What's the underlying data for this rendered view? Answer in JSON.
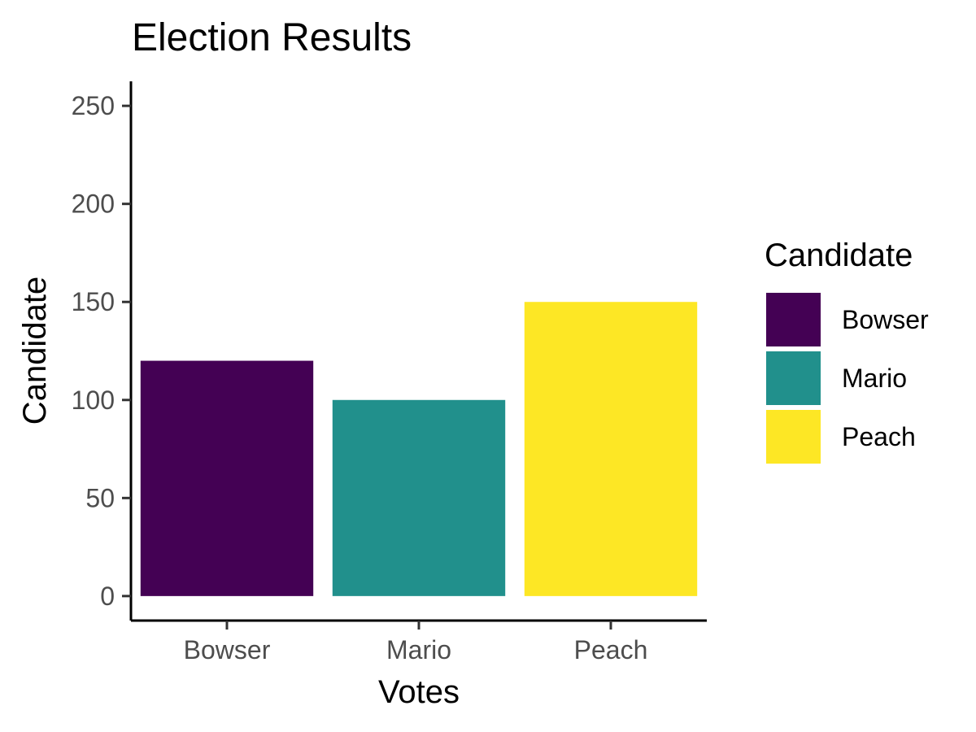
{
  "chart_data": {
    "type": "bar",
    "title": "Election Results",
    "xlabel": "Votes",
    "ylabel": "Candidate",
    "categories": [
      "Bowser",
      "Mario",
      "Peach"
    ],
    "values": [
      120,
      100,
      150
    ],
    "colors": [
      "#440154",
      "#21908C",
      "#FDE725"
    ],
    "ylim": [
      -12.5,
      262.5
    ],
    "yticks": [
      0,
      50,
      100,
      150,
      200,
      250
    ],
    "legend": {
      "title": "Candidate",
      "position": "right",
      "items": [
        {
          "label": "Bowser",
          "color": "#440154"
        },
        {
          "label": "Mario",
          "color": "#21908C"
        },
        {
          "label": "Peach",
          "color": "#FDE725"
        }
      ]
    }
  }
}
